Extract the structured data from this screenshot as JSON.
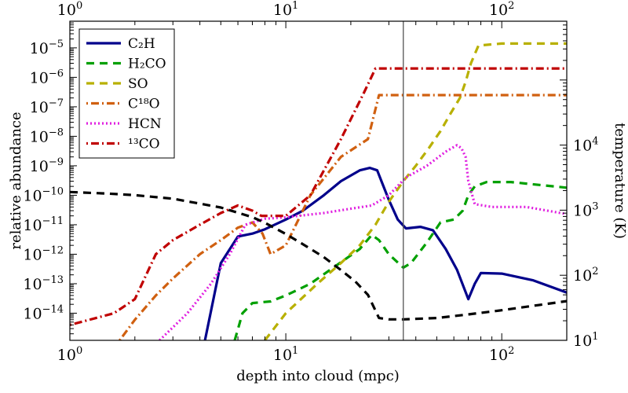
{
  "chart_data": {
    "type": "line",
    "title": "",
    "xlabel": "depth into cloud (mpc)",
    "ylabel": "relative abundance",
    "y2label": "temperature (K)",
    "xscale": "log",
    "yscale": "log",
    "y2scale": "log",
    "xlim": [
      1,
      200
    ],
    "ylim": [
      1.2e-15,
      8e-05
    ],
    "y2lim": [
      10,
      800000
    ],
    "x_tick_labels": [
      {
        "value": 1,
        "base": "10",
        "exp": "0"
      },
      {
        "value": 10,
        "base": "10",
        "exp": "1"
      },
      {
        "value": 100,
        "base": "10",
        "exp": "2"
      }
    ],
    "y_tick_labels": [
      {
        "value": 1e-14,
        "base": "10",
        "exp": "−14"
      },
      {
        "value": 1e-13,
        "base": "10",
        "exp": "−13"
      },
      {
        "value": 1e-12,
        "base": "10",
        "exp": "−12"
      },
      {
        "value": 1e-11,
        "base": "10",
        "exp": "−11"
      },
      {
        "value": 1e-10,
        "base": "10",
        "exp": "−10"
      },
      {
        "value": 1e-09,
        "base": "10",
        "exp": "−9"
      },
      {
        "value": 1e-08,
        "base": "10",
        "exp": "−8"
      },
      {
        "value": 1e-07,
        "base": "10",
        "exp": "−7"
      },
      {
        "value": 1e-06,
        "base": "10",
        "exp": "−6"
      },
      {
        "value": 1e-05,
        "base": "10",
        "exp": "−5"
      }
    ],
    "y2_tick_labels": [
      {
        "value": 10,
        "base": "10",
        "exp": "1"
      },
      {
        "value": 100,
        "base": "10",
        "exp": "2"
      },
      {
        "value": 1000,
        "base": "10",
        "exp": "3"
      },
      {
        "value": 10000,
        "base": "10",
        "exp": "4"
      }
    ],
    "legend_position": "top-left",
    "vertical_line_x": 35,
    "series": [
      {
        "name": "C₂H",
        "color": "#00008b",
        "dash": "solid",
        "points": [
          [
            4.2,
            1e-15
          ],
          [
            5,
            5e-13
          ],
          [
            6,
            4e-12
          ],
          [
            7,
            5e-12
          ],
          [
            8,
            7e-12
          ],
          [
            10,
            1.5e-11
          ],
          [
            12,
            3e-11
          ],
          [
            15,
            1e-10
          ],
          [
            18,
            3e-10
          ],
          [
            22,
            7e-10
          ],
          [
            24.5,
            8.5e-10
          ],
          [
            26.5,
            7e-10
          ],
          [
            28,
            2.5e-10
          ],
          [
            30,
            7e-11
          ],
          [
            33,
            1.5e-11
          ],
          [
            36,
            7.5e-12
          ],
          [
            42,
            8.5e-12
          ],
          [
            48,
            6.5e-12
          ],
          [
            55,
            1.5e-12
          ],
          [
            62,
            3e-13
          ],
          [
            70,
            3e-14
          ],
          [
            75,
            1e-13
          ],
          [
            80,
            2.3e-13
          ],
          [
            100,
            2.2e-13
          ],
          [
            140,
            1.3e-13
          ],
          [
            200,
            5e-14
          ]
        ]
      },
      {
        "name": "H₂CO",
        "color": "#00a000",
        "dash": "10,7",
        "points": [
          [
            5.8,
            1.2e-15
          ],
          [
            6.3,
            1e-14
          ],
          [
            7,
            2.2e-14
          ],
          [
            8.5,
            2.5e-14
          ],
          [
            10,
            4e-14
          ],
          [
            13,
            1e-13
          ],
          [
            17,
            4e-13
          ],
          [
            22,
            1.5e-12
          ],
          [
            25,
            4.5e-12
          ],
          [
            27,
            3e-12
          ],
          [
            30,
            1e-12
          ],
          [
            35,
            3.5e-13
          ],
          [
            38,
            5e-13
          ],
          [
            45,
            2.5e-12
          ],
          [
            52,
            1.2e-11
          ],
          [
            60,
            1.5e-11
          ],
          [
            66,
            3e-11
          ],
          [
            70,
            1e-10
          ],
          [
            75,
            2e-10
          ],
          [
            85,
            2.8e-10
          ],
          [
            110,
            2.8e-10
          ],
          [
            200,
            1.8e-10
          ]
        ]
      },
      {
        "name": "SO",
        "color": "#b8b000",
        "dash": "10,7",
        "points": [
          [
            8,
            1.2e-15
          ],
          [
            10,
            1e-14
          ],
          [
            14,
            1e-13
          ],
          [
            18,
            5e-13
          ],
          [
            22,
            2e-12
          ],
          [
            26,
            1e-11
          ],
          [
            30,
            6e-11
          ],
          [
            35,
            3e-10
          ],
          [
            40,
            1e-09
          ],
          [
            46,
            4e-09
          ],
          [
            52,
            1.5e-08
          ],
          [
            58,
            6e-08
          ],
          [
            64,
            2e-07
          ],
          [
            68,
            7e-07
          ],
          [
            72,
            3e-06
          ],
          [
            78,
            1.2e-05
          ],
          [
            100,
            1.4e-05
          ],
          [
            200,
            1.4e-05
          ]
        ]
      },
      {
        "name": "C¹⁸O",
        "color": "#d06010",
        "dash": "2,4,10,4",
        "points": [
          [
            1.7,
            1.2e-15
          ],
          [
            2,
            6e-15
          ],
          [
            2.5,
            4e-14
          ],
          [
            3,
            1.5e-13
          ],
          [
            4,
            1e-12
          ],
          [
            5,
            3e-12
          ],
          [
            6,
            8e-12
          ],
          [
            7,
            1.2e-11
          ],
          [
            7.8,
            5e-12
          ],
          [
            8.5,
            1e-12
          ],
          [
            10,
            2e-12
          ],
          [
            13,
            1e-10
          ],
          [
            18,
            2e-09
          ],
          [
            24,
            8e-09
          ],
          [
            27,
            2.5e-07
          ],
          [
            35,
            2.5e-07
          ],
          [
            100,
            2.5e-07
          ],
          [
            200,
            2.5e-07
          ]
        ]
      },
      {
        "name": "HCN",
        "color": "#e020e0",
        "dash": "2,3",
        "points": [
          [
            2.6,
            1.2e-15
          ],
          [
            3.5,
            1e-14
          ],
          [
            4.5,
            1e-13
          ],
          [
            5.5,
            1e-12
          ],
          [
            6.5,
            1e-11
          ],
          [
            8,
            1.6e-11
          ],
          [
            10,
            1.8e-11
          ],
          [
            15,
            2.5e-11
          ],
          [
            20,
            3.5e-11
          ],
          [
            25,
            4.5e-11
          ],
          [
            30,
            1e-10
          ],
          [
            36,
            4e-10
          ],
          [
            45,
            1e-09
          ],
          [
            55,
            3e-09
          ],
          [
            62,
            5e-09
          ],
          [
            65,
            4e-09
          ],
          [
            68,
            2e-09
          ],
          [
            70,
            3e-10
          ],
          [
            75,
            5e-11
          ],
          [
            90,
            4e-11
          ],
          [
            130,
            4e-11
          ],
          [
            200,
            2.3e-11
          ]
        ]
      },
      {
        "name": "¹³CO",
        "color": "#c00000",
        "dash": "2,4,10,4",
        "points": [
          [
            1,
            4e-15
          ],
          [
            1.6,
            1e-14
          ],
          [
            2,
            3e-14
          ],
          [
            2.5,
            1e-12
          ],
          [
            3,
            3e-12
          ],
          [
            4,
            1e-11
          ],
          [
            5,
            2.5e-11
          ],
          [
            6,
            4.5e-11
          ],
          [
            7,
            3e-11
          ],
          [
            7.7,
            2e-11
          ],
          [
            10,
            2e-11
          ],
          [
            13,
            1e-10
          ],
          [
            18,
            8e-09
          ],
          [
            23,
            3e-07
          ],
          [
            26,
            2e-06
          ],
          [
            30,
            2e-06
          ],
          [
            100,
            2e-06
          ],
          [
            200,
            2e-06
          ]
        ]
      },
      {
        "name": "temperature",
        "axis": "y2",
        "color": "#000000",
        "dash": "10,7",
        "legend": false,
        "points": [
          [
            1,
            1900
          ],
          [
            1.5,
            1800
          ],
          [
            2,
            1700
          ],
          [
            3,
            1500
          ],
          [
            5,
            1100
          ],
          [
            7,
            780
          ],
          [
            8,
            640
          ],
          [
            10,
            430
          ],
          [
            12,
            300
          ],
          [
            15,
            190
          ],
          [
            18,
            120
          ],
          [
            21,
            80
          ],
          [
            24,
            50
          ],
          [
            27,
            22
          ],
          [
            30,
            21
          ],
          [
            35,
            21
          ],
          [
            50,
            22
          ],
          [
            70,
            25
          ],
          [
            100,
            29
          ],
          [
            150,
            35
          ],
          [
            200,
            40
          ]
        ]
      }
    ]
  }
}
